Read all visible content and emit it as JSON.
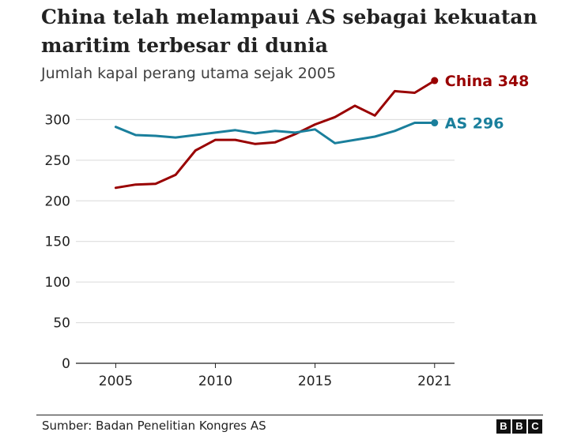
{
  "title": "China telah melampaui AS sebagai kekuatan maritim terbesar di dunia",
  "subtitle": "Jumlah kapal perang utama sejak 2005",
  "source": "Sumber: Badan Penelitian Kongres AS",
  "logo": [
    "B",
    "B",
    "C"
  ],
  "colors": {
    "china": "#990000",
    "us": "#1a7f9c",
    "grid": "#d9d9d9",
    "axis": "#222222",
    "text": "#222222"
  },
  "chart_data": {
    "type": "line",
    "title": "China telah melampaui AS sebagai kekuatan maritim terbesar di dunia",
    "subtitle": "Jumlah kapal perang utama sejak 2005",
    "xlabel": "",
    "ylabel": "",
    "xlim": [
      2003,
      2022
    ],
    "ylim": [
      0,
      350
    ],
    "xticks": [
      2005,
      2010,
      2015,
      2021
    ],
    "xtick_labels": [
      "2005",
      "2010",
      "2015",
      "2021"
    ],
    "yticks": [
      0,
      50,
      100,
      150,
      200,
      250,
      300
    ],
    "ytick_labels": [
      "0",
      "50",
      "100",
      "150",
      "200",
      "250",
      "300"
    ],
    "grid": "horizontal",
    "series": [
      {
        "name": "China",
        "label": "China 348",
        "color": "#990000",
        "x": [
          2005,
          2006,
          2007,
          2008,
          2009,
          2010,
          2011,
          2012,
          2013,
          2014,
          2015,
          2016,
          2017,
          2018,
          2019,
          2020,
          2021
        ],
        "values": [
          216,
          220,
          221,
          232,
          262,
          275,
          275,
          270,
          272,
          282,
          294,
          303,
          317,
          305,
          335,
          333,
          348
        ]
      },
      {
        "name": "AS",
        "label": "AS 296",
        "color": "#1a7f9c",
        "x": [
          2005,
          2006,
          2007,
          2008,
          2009,
          2010,
          2011,
          2012,
          2013,
          2014,
          2015,
          2016,
          2017,
          2018,
          2019,
          2020,
          2021
        ],
        "values": [
          291,
          281,
          280,
          278,
          281,
          284,
          287,
          283,
          286,
          284,
          288,
          271,
          275,
          279,
          286,
          296,
          296
        ]
      }
    ]
  }
}
